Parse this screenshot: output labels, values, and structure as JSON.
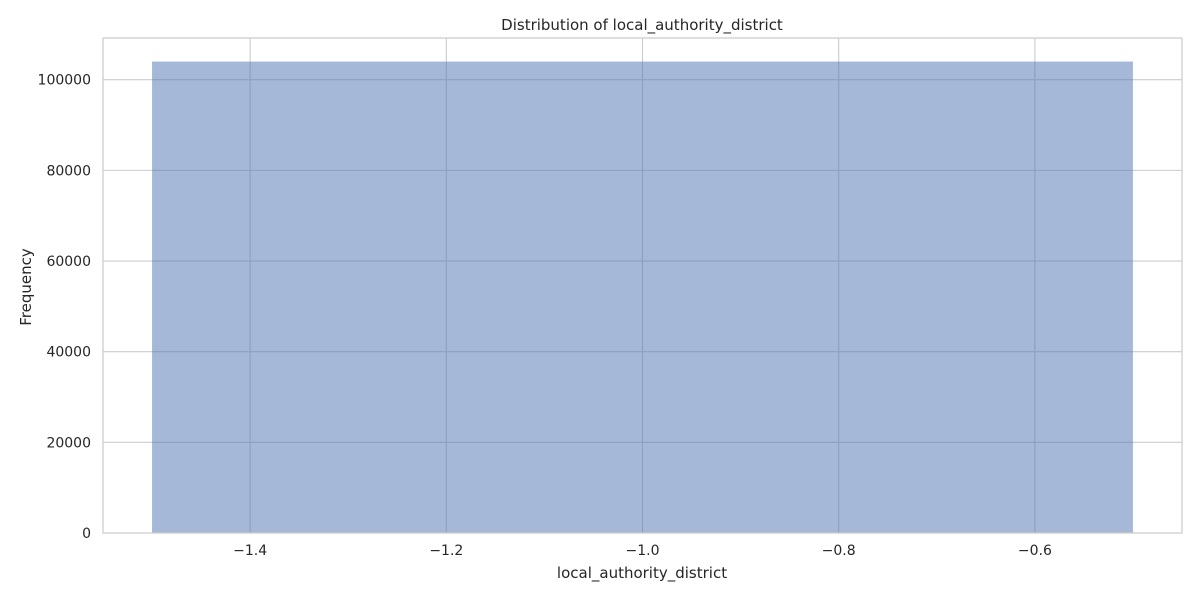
{
  "chart_data": {
    "type": "bar",
    "title": "Distribution of local_authority_district",
    "xlabel": "local_authority_district",
    "ylabel": "Frequency",
    "bins": [
      {
        "x_start": -1.5,
        "x_end": -0.5,
        "value": 104000
      }
    ],
    "xlim": [
      -1.55,
      -0.45
    ],
    "ylim": [
      0,
      109200
    ],
    "xticks": [
      -1.4,
      -1.2,
      -1.0,
      -0.8,
      -0.6
    ],
    "xtick_labels": [
      "−1.4",
      "−1.2",
      "−1.0",
      "−0.8",
      "−0.6"
    ],
    "yticks": [
      0,
      20000,
      40000,
      60000,
      80000,
      100000
    ],
    "ytick_labels": [
      "0",
      "20000",
      "40000",
      "60000",
      "80000",
      "100000"
    ],
    "grid": true,
    "bar_color": "#4c72b0",
    "bar_opacity": 0.5
  }
}
